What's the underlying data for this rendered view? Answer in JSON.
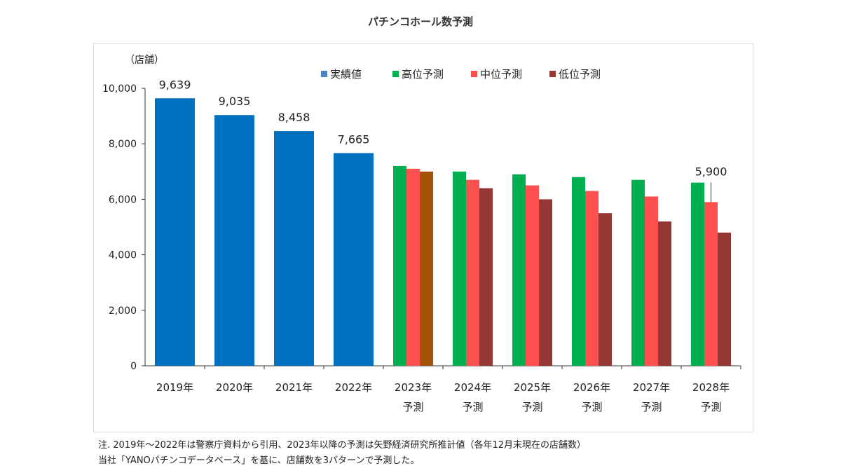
{
  "chart_data": {
    "type": "bar",
    "title": "パチンコホール数予測",
    "ylabel": "（店舗）",
    "ylim": [
      0,
      10000
    ],
    "yticks": [
      0,
      2000,
      4000,
      6000,
      8000,
      10000
    ],
    "ytick_labels": [
      "0",
      "2,000",
      "4,000",
      "6,000",
      "8,000",
      "10,000"
    ],
    "categories": [
      [
        "2019年"
      ],
      [
        "2020年"
      ],
      [
        "2021年"
      ],
      [
        "2022年"
      ],
      [
        "2023年",
        "予測"
      ],
      [
        "2024年",
        "予測"
      ],
      [
        "2025年",
        "予測"
      ],
      [
        "2026年",
        "予測"
      ],
      [
        "2027年",
        "予測"
      ],
      [
        "2028年",
        "予測"
      ]
    ],
    "legend_position": "top",
    "series": [
      {
        "name": "実績値",
        "color": "#0070c0",
        "values": [
          9639,
          9035,
          8458,
          7665,
          null,
          null,
          null,
          null,
          null,
          null
        ]
      },
      {
        "name": "高位予測",
        "color": "#00b050",
        "values": [
          null,
          null,
          null,
          null,
          7200,
          7000,
          6900,
          6800,
          6700,
          6600
        ]
      },
      {
        "name": "中位予測",
        "color": "#ff5050",
        "values": [
          null,
          null,
          null,
          null,
          7100,
          6700,
          6500,
          6300,
          6100,
          5900
        ]
      },
      {
        "name": "低位予測",
        "color": "#953735",
        "values": [
          null,
          null,
          null,
          null,
          7000,
          6400,
          6000,
          5500,
          5200,
          4800
        ],
        "first_bar_color": "#a5520c"
      }
    ],
    "data_labels": [
      {
        "series": 0,
        "index": 0,
        "text": "9,639"
      },
      {
        "series": 0,
        "index": 1,
        "text": "9,035"
      },
      {
        "series": 0,
        "index": 2,
        "text": "8,458"
      },
      {
        "series": 0,
        "index": 3,
        "text": "7,665"
      },
      {
        "series": 2,
        "index": 9,
        "text": "5,900"
      }
    ],
    "grid": false
  },
  "notes": [
    "注.  2019年～2022年は警察庁資料から引用、2023年以降の予測は矢野経済研究所推計値（各年12月末現在の店舗数）",
    "当社「YANOパチンコデータベース」を基に、店舗数を3パターンで予測した。"
  ]
}
